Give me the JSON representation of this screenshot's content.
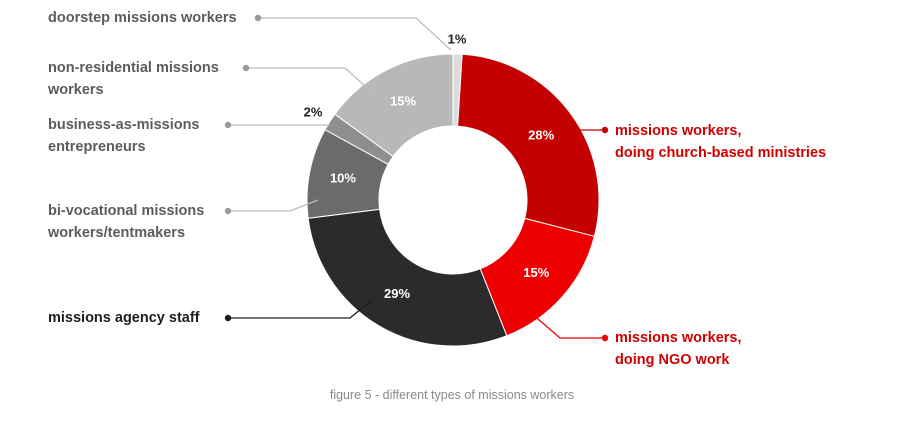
{
  "caption": "figure 5 - different types of missions workers",
  "chart_data": {
    "type": "pie",
    "donut": true,
    "title": "",
    "slices": [
      {
        "value": 1,
        "label_text": "1%",
        "color": "#dcdcdc",
        "legend": [
          "doorstep missions workers"
        ]
      },
      {
        "value": 28,
        "label_text": "28%",
        "color": "#c40000",
        "legend": [
          "missions workers,",
          "doing church-based ministries"
        ]
      },
      {
        "value": 15,
        "label_text": "15%",
        "color": "#ee0000",
        "legend": [
          "missions workers,",
          "doing NGO work"
        ]
      },
      {
        "value": 29,
        "label_text": "29%",
        "color": "#2b2b2b",
        "legend": [
          "missions agency staff"
        ]
      },
      {
        "value": 10,
        "label_text": "10%",
        "color": "#6b6b6b",
        "legend": [
          "bi-vocational missions",
          "workers/tentmakers"
        ]
      },
      {
        "value": 2,
        "label_text": "2%",
        "color": "#8e8e8e",
        "legend": [
          "business-as-missions",
          "entrepreneurs"
        ]
      },
      {
        "value": 15,
        "label_text": "15%",
        "color": "#b8b8b8",
        "legend": [
          "non-residential missions",
          "workers"
        ]
      }
    ]
  }
}
